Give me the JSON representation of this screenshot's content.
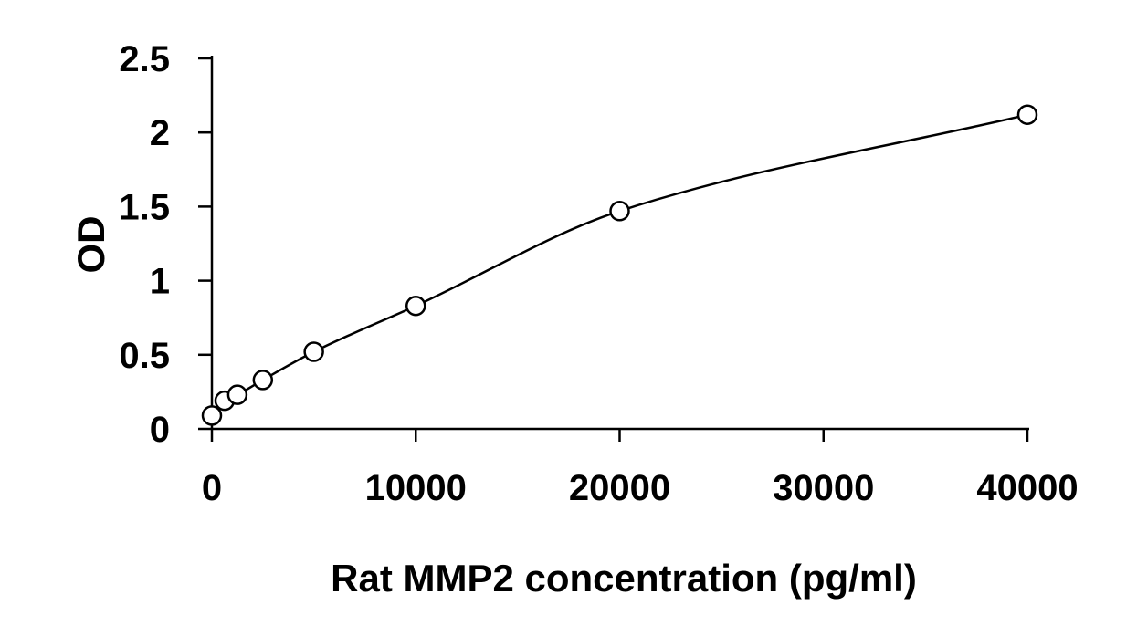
{
  "chart_data": {
    "type": "scatter",
    "title": "",
    "xlabel": "Rat MMP2 concentration (pg/ml)",
    "ylabel": "OD",
    "xlim": [
      0,
      40000
    ],
    "ylim": [
      0,
      2.5
    ],
    "x_ticks": [
      {
        "value": 0,
        "label": "0"
      },
      {
        "value": 10000,
        "label": "10000"
      },
      {
        "value": 20000,
        "label": "20000"
      },
      {
        "value": 30000,
        "label": "30000"
      },
      {
        "value": 40000,
        "label": "40000"
      }
    ],
    "y_ticks": [
      {
        "value": 0,
        "label": "0"
      },
      {
        "value": 0.5,
        "label": "0.5"
      },
      {
        "value": 1,
        "label": "1"
      },
      {
        "value": 1.5,
        "label": "1.5"
      },
      {
        "value": 2,
        "label": "2"
      },
      {
        "value": 2.5,
        "label": "2.5"
      }
    ],
    "grid": false,
    "legend": "none",
    "marker": "open-circle",
    "fit_curve": "smooth",
    "series": [
      {
        "points": [
          {
            "x": 0,
            "y": 0.09
          },
          {
            "x": 625,
            "y": 0.19
          },
          {
            "x": 1250,
            "y": 0.23
          },
          {
            "x": 2500,
            "y": 0.33
          },
          {
            "x": 5000,
            "y": 0.52
          },
          {
            "x": 10000,
            "y": 0.83
          },
          {
            "x": 20000,
            "y": 1.47
          },
          {
            "x": 40000,
            "y": 2.12
          }
        ]
      }
    ],
    "colors": {
      "axis": "#000000",
      "marker_stroke": "#000000",
      "curve": "#000000",
      "background": "#ffffff"
    }
  }
}
